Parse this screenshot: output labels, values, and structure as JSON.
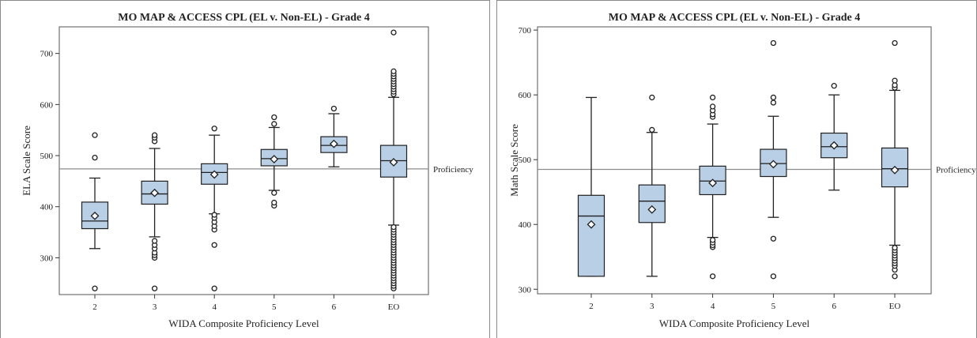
{
  "chart_data": [
    {
      "type": "box",
      "title": "MO MAP & ACCESS CPL (EL v. Non-EL) - Grade 4",
      "xlabel": "WIDA Composite Proficiency Level",
      "ylabel": "ELA Scale Score",
      "categories": [
        "2",
        "3",
        "4",
        "5",
        "6",
        "EO"
      ],
      "ylim": [
        228,
        752
      ],
      "yticks": [
        300,
        400,
        500,
        600,
        700
      ],
      "reference_line": {
        "value": 474,
        "label": "Proficiency"
      },
      "boxes": [
        {
          "category": "2",
          "whisker_low": 318,
          "q1": 357,
          "median": 372,
          "q3": 409,
          "whisker_high": 456,
          "mean": 382,
          "outliers": [
            240,
            496,
            540
          ]
        },
        {
          "category": "3",
          "whisker_low": 341,
          "q1": 405,
          "median": 425,
          "q3": 450,
          "whisker_high": 514,
          "mean": 427,
          "outliers": [
            240,
            300,
            305,
            310,
            318,
            325,
            333,
            528,
            535,
            540
          ]
        },
        {
          "category": "4",
          "whisker_low": 386,
          "q1": 444,
          "median": 467,
          "q3": 484,
          "whisker_high": 540,
          "mean": 463,
          "outliers": [
            240,
            325,
            355,
            362,
            370,
            378,
            384,
            553
          ]
        },
        {
          "category": "5",
          "whisker_low": 432,
          "q1": 480,
          "median": 494,
          "q3": 512,
          "whisker_high": 555,
          "mean": 493,
          "outliers": [
            402,
            408,
            427,
            562,
            575
          ]
        },
        {
          "category": "6",
          "whisker_low": 478,
          "q1": 506,
          "median": 520,
          "q3": 537,
          "whisker_high": 582,
          "mean": 523,
          "outliers": [
            592
          ]
        },
        {
          "category": "EO",
          "whisker_low": 364,
          "q1": 458,
          "median": 490,
          "q3": 520,
          "whisker_high": 614,
          "mean": 487,
          "outliers": [
            240,
            245,
            250,
            255,
            260,
            265,
            270,
            275,
            280,
            285,
            290,
            295,
            300,
            305,
            310,
            315,
            320,
            325,
            330,
            335,
            340,
            345,
            350,
            355,
            360,
            620,
            625,
            630,
            635,
            640,
            645,
            650,
            655,
            660,
            665,
            741
          ]
        }
      ]
    },
    {
      "type": "box",
      "title": "MO MAP & ACCESS CPL (EL v. Non-EL) - Grade 4",
      "xlabel": "WIDA Composite Proficiency Level",
      "ylabel": "Math Scale Score",
      "categories": [
        "2",
        "3",
        "4",
        "5",
        "6",
        "EO"
      ],
      "ylim": [
        293,
        705
      ],
      "yticks": [
        300,
        400,
        500,
        600,
        700
      ],
      "reference_line": {
        "value": 485,
        "label": "Proficiency"
      },
      "boxes": [
        {
          "category": "2",
          "whisker_low": 320,
          "q1": 320,
          "median": 413,
          "q3": 445,
          "whisker_high": 596,
          "mean": 400,
          "outliers": []
        },
        {
          "category": "3",
          "whisker_low": 320,
          "q1": 403,
          "median": 436,
          "q3": 461,
          "whisker_high": 542,
          "mean": 423,
          "outliers": [
            546,
            596
          ]
        },
        {
          "category": "4",
          "whisker_low": 380,
          "q1": 446,
          "median": 467,
          "q3": 490,
          "whisker_high": 555,
          "mean": 464,
          "outliers": [
            320,
            365,
            368,
            372,
            376,
            566,
            570,
            576,
            582,
            596
          ]
        },
        {
          "category": "5",
          "whisker_low": 411,
          "q1": 474,
          "median": 494,
          "q3": 516,
          "whisker_high": 567,
          "mean": 493,
          "outliers": [
            320,
            378,
            588,
            596,
            680
          ]
        },
        {
          "category": "6",
          "whisker_low": 453,
          "q1": 503,
          "median": 520,
          "q3": 541,
          "whisker_high": 600,
          "mean": 522,
          "outliers": [
            614
          ]
        },
        {
          "category": "EO",
          "whisker_low": 368,
          "q1": 458,
          "median": 486,
          "q3": 518,
          "whisker_high": 607,
          "mean": 484,
          "outliers": [
            320,
            330,
            336,
            340,
            344,
            348,
            352,
            356,
            360,
            364,
            611,
            615,
            622,
            680
          ]
        }
      ]
    }
  ]
}
